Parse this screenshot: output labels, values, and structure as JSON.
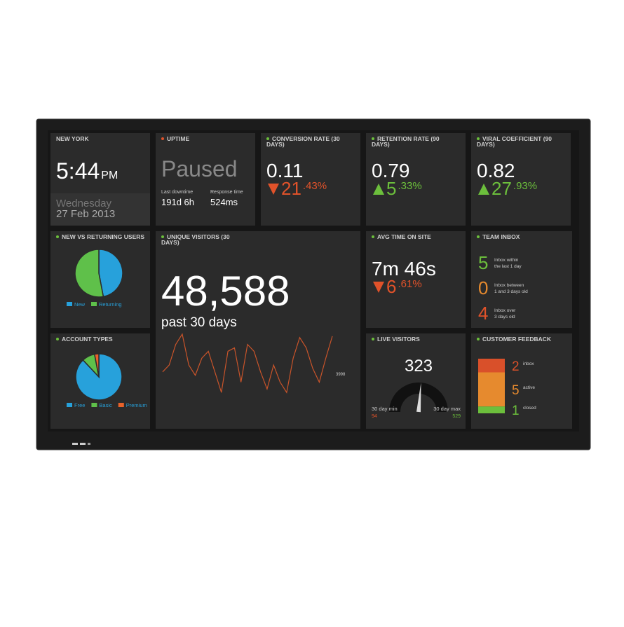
{
  "clock": {
    "title": "NEW YORK",
    "time": "5:44",
    "ampm": "PM",
    "day": "Wednesday",
    "date": "27 Feb 2013"
  },
  "uptime": {
    "title": "UPTIME",
    "dot": "#e0522a",
    "status": "Paused",
    "stats": [
      {
        "label": "Last downtime",
        "value": "191d 6h"
      },
      {
        "label": "Response time",
        "value": "524ms"
      }
    ]
  },
  "metrics": [
    {
      "title": "CONVERSION RATE (30 DAYS)",
      "dot": "#6cbf3c",
      "value": "0.11",
      "change": "21",
      "change_decimals": ".43%",
      "direction": "down"
    },
    {
      "title": "RETENTION RATE (90 DAYS)",
      "dot": "#6cbf3c",
      "value": "0.79",
      "change": "5",
      "change_decimals": ".33%",
      "direction": "up"
    },
    {
      "title": "VIRAL COEFFICIENT (90 DAYS)",
      "dot": "#6cbf3c",
      "value": "0.82",
      "change": "27",
      "change_decimals": ".93%",
      "direction": "up"
    },
    {
      "title": "AVG TIME ON SITE",
      "dot": "#6cbf3c",
      "value": "7m 46s",
      "change": "6",
      "change_decimals": ".61%",
      "direction": "down"
    }
  ],
  "new_vs_returning": {
    "type": "pie",
    "title": "NEW VS RETURNING USERS",
    "dot": "#6cbf3c",
    "categories": [
      "New",
      "Returning"
    ],
    "values": [
      47,
      53
    ],
    "colors": [
      "#27a1db",
      "#5fc04a"
    ]
  },
  "account_types": {
    "type": "pie",
    "title": "ACCOUNT TYPES",
    "dot": "#6cbf3c",
    "categories": [
      "Free",
      "Basic",
      "Premium"
    ],
    "values": [
      88,
      9,
      3
    ],
    "colors": [
      "#27a1db",
      "#5fc04a",
      "#e8622a"
    ]
  },
  "unique_visitors": {
    "type": "line",
    "title": "UNIQUE VISITORS (30 DAYS)",
    "dot": "#6cbf3c",
    "value": "48,588",
    "subtitle": "past 30 days",
    "color": "#c9542a",
    "ylim": [
      0,
      100
    ],
    "values": [
      42,
      52,
      82,
      97,
      52,
      37,
      62,
      72,
      42,
      12,
      72,
      77,
      27,
      82,
      72,
      42,
      17,
      52,
      27,
      12,
      62,
      92,
      77,
      47,
      27,
      62,
      94
    ],
    "end_label": "3998"
  },
  "live_visitors": {
    "type": "gauge",
    "title": "LIVE VISITORS",
    "dot": "#6cbf3c",
    "value": 323,
    "min_label": "30 day min",
    "max_label": "30 day max",
    "min": 94,
    "max": 529
  },
  "team_inbox": {
    "title": "TEAM INBOX",
    "dot": "#6cbf3c",
    "items": [
      {
        "count": 5,
        "color": "#6cbf3c",
        "line1": "Inbox within",
        "line2": "the last 1 day"
      },
      {
        "count": 0,
        "color": "#e68a2e",
        "line1": "Inbox between",
        "line2": "1 and 3 days old"
      },
      {
        "count": 4,
        "color": "#e0522a",
        "line1": "Inbox over",
        "line2": "3 days old"
      }
    ]
  },
  "customer_feedback": {
    "type": "stacked_bar",
    "title": "CUSTOMER FEEDBACK",
    "dot": "#6cbf3c",
    "categories": [
      "inbox",
      "active",
      "closed"
    ],
    "values": [
      2,
      5,
      1
    ],
    "colors": [
      "#d9502a",
      "#e68a2e",
      "#6cbf3c"
    ]
  }
}
